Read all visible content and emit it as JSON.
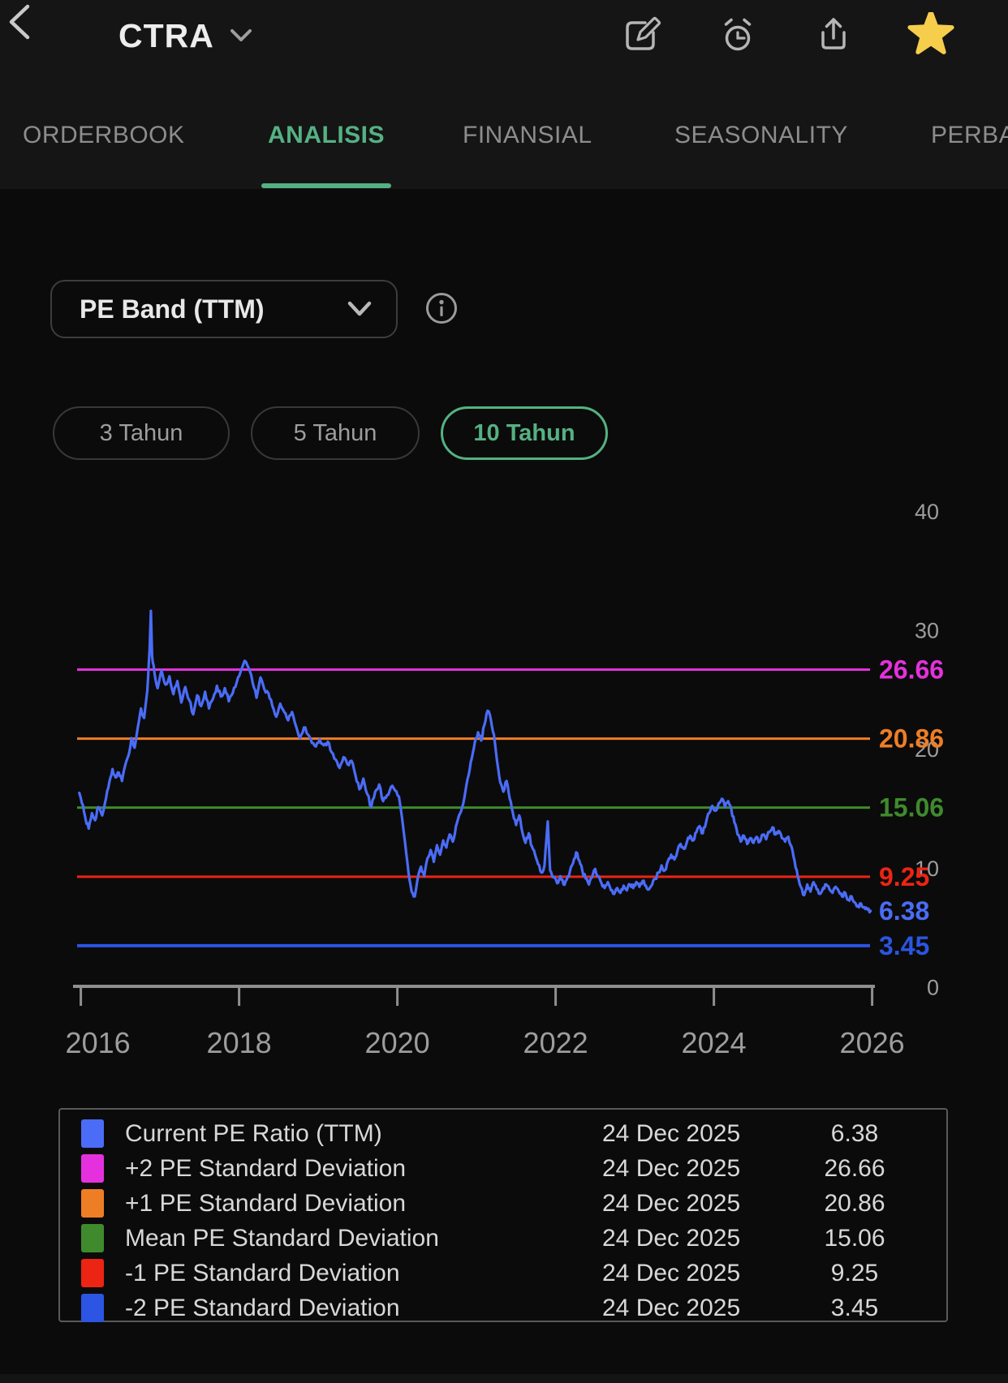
{
  "colors": {
    "accent": "#55b183",
    "star": "#f6ce4b",
    "series_blue": "#4a6cf7",
    "axis_gray": "#9d9d9d"
  },
  "header": {
    "title": "CTRA",
    "actions": [
      {
        "icon": "edit-icon"
      },
      {
        "icon": "alarm-icon"
      },
      {
        "icon": "share-icon"
      },
      {
        "icon": "star-icon",
        "active": true
      }
    ],
    "tabs": [
      {
        "label": "ORDERBOOK",
        "active": false
      },
      {
        "label": "ANALISIS",
        "active": true
      },
      {
        "label": "FINANSIAL",
        "active": false
      },
      {
        "label": "SEASONALITY",
        "active": false
      },
      {
        "label": "PERBA",
        "active": false
      }
    ]
  },
  "selector": {
    "label": "PE Band (TTM)"
  },
  "ranges": [
    {
      "label": "3 Tahun",
      "active": false
    },
    {
      "label": "5 Tahun",
      "active": false
    },
    {
      "label": "10 Tahun",
      "active": true
    }
  ],
  "chart_data": {
    "type": "line",
    "title": "PE Band (TTM) - 10 Tahun",
    "x": {
      "ticks": [
        2016,
        2018,
        2020,
        2022,
        2024,
        2026
      ],
      "range": [
        2015.95,
        2026
      ]
    },
    "y": {
      "ticks": [
        40,
        30,
        20,
        10,
        0
      ],
      "range": [
        0,
        40
      ],
      "grid": false
    },
    "bands": [
      {
        "name": "+2 PE Standard Deviation",
        "value": 26.66,
        "label": "26.66",
        "color": "#e431dd"
      },
      {
        "name": "+1 PE Standard Deviation",
        "value": 20.86,
        "label": "20.86",
        "color": "#ee7e25"
      },
      {
        "name": "Mean PE Standard Deviation",
        "value": 15.06,
        "label": "15.06",
        "color": "#3f8a2d"
      },
      {
        "name": "-1 PE Standard Deviation",
        "value": 9.25,
        "label": "9.25",
        "color": "#ec2413"
      },
      {
        "name": "-2 PE Standard Deviation",
        "value": 3.45,
        "label": "3.45",
        "color": "#2b55e2"
      }
    ],
    "series": [
      {
        "name": "Current PE Ratio (TTM)",
        "color": "#4a6cf7",
        "current_value": 6.38,
        "current_label": "6.38",
        "points": [
          [
            2015.98,
            16.3
          ],
          [
            2016.03,
            15.2
          ],
          [
            2016.06,
            14.1
          ],
          [
            2016.1,
            13.3
          ],
          [
            2016.14,
            14.6
          ],
          [
            2016.18,
            14
          ],
          [
            2016.22,
            15.1
          ],
          [
            2016.27,
            14.4
          ],
          [
            2016.32,
            15.9
          ],
          [
            2016.36,
            17.2
          ],
          [
            2016.4,
            18.3
          ],
          [
            2016.44,
            17.6
          ],
          [
            2016.48,
            18
          ],
          [
            2016.52,
            17.3
          ],
          [
            2016.56,
            18.6
          ],
          [
            2016.6,
            19.4
          ],
          [
            2016.64,
            20.9
          ],
          [
            2016.68,
            20.1
          ],
          [
            2016.72,
            21.8
          ],
          [
            2016.76,
            23.4
          ],
          [
            2016.8,
            22.6
          ],
          [
            2016.84,
            24.9
          ],
          [
            2016.87,
            28.4
          ],
          [
            2016.885,
            31.6
          ],
          [
            2016.9,
            27.8
          ],
          [
            2016.93,
            26.4
          ],
          [
            2016.97,
            25.1
          ],
          [
            2017.02,
            26.6
          ],
          [
            2017.07,
            25.4
          ],
          [
            2017.12,
            26.1
          ],
          [
            2017.17,
            24.6
          ],
          [
            2017.22,
            25.7
          ],
          [
            2017.27,
            23.9
          ],
          [
            2017.32,
            25.2
          ],
          [
            2017.37,
            24.1
          ],
          [
            2017.42,
            22.9
          ],
          [
            2017.47,
            24.5
          ],
          [
            2017.52,
            23.6
          ],
          [
            2017.57,
            24.8
          ],
          [
            2017.62,
            23.4
          ],
          [
            2017.67,
            24.2
          ],
          [
            2017.72,
            25.3
          ],
          [
            2017.77,
            24.4
          ],
          [
            2017.82,
            25.1
          ],
          [
            2017.87,
            24
          ],
          [
            2017.92,
            24.7
          ],
          [
            2017.97,
            25.6
          ],
          [
            2018.02,
            26.5
          ],
          [
            2018.07,
            27.4
          ],
          [
            2018.12,
            26.8
          ],
          [
            2018.17,
            25.6
          ],
          [
            2018.22,
            24.3
          ],
          [
            2018.27,
            26
          ],
          [
            2018.32,
            25
          ],
          [
            2018.37,
            24.7
          ],
          [
            2018.42,
            23.6
          ],
          [
            2018.47,
            22.7
          ],
          [
            2018.52,
            23.8
          ],
          [
            2018.57,
            23.1
          ],
          [
            2018.62,
            22.4
          ],
          [
            2018.67,
            23.1
          ],
          [
            2018.72,
            21.9
          ],
          [
            2018.77,
            20.9
          ],
          [
            2018.82,
            21.8
          ],
          [
            2018.87,
            21.2
          ],
          [
            2018.92,
            20.5
          ],
          [
            2018.97,
            20.2
          ],
          [
            2019.02,
            20.8
          ],
          [
            2019.07,
            20.3
          ],
          [
            2019.12,
            20.6
          ],
          [
            2019.17,
            19.7
          ],
          [
            2019.22,
            19.1
          ],
          [
            2019.27,
            18.4
          ],
          [
            2019.32,
            19.3
          ],
          [
            2019.37,
            18.7
          ],
          [
            2019.42,
            19
          ],
          [
            2019.47,
            17.8
          ],
          [
            2019.52,
            16.6
          ],
          [
            2019.57,
            17.5
          ],
          [
            2019.62,
            16.2
          ],
          [
            2019.67,
            15.1
          ],
          [
            2019.72,
            16.4
          ],
          [
            2019.77,
            17
          ],
          [
            2019.82,
            15.6
          ],
          [
            2019.87,
            16.1
          ],
          [
            2019.92,
            16.8
          ],
          [
            2019.97,
            16.5
          ],
          [
            2020.02,
            16
          ],
          [
            2020.06,
            14.2
          ],
          [
            2020.1,
            12
          ],
          [
            2020.14,
            9.6
          ],
          [
            2020.18,
            8
          ],
          [
            2020.22,
            7.6
          ],
          [
            2020.26,
            9.2
          ],
          [
            2020.3,
            10.1
          ],
          [
            2020.34,
            9.3
          ],
          [
            2020.38,
            10.8
          ],
          [
            2020.42,
            11.5
          ],
          [
            2020.46,
            10.5
          ],
          [
            2020.5,
            11.9
          ],
          [
            2020.54,
            11.1
          ],
          [
            2020.58,
            12.3
          ],
          [
            2020.62,
            11.7
          ],
          [
            2020.66,
            12.8
          ],
          [
            2020.7,
            12.2
          ],
          [
            2020.74,
            13.5
          ],
          [
            2020.78,
            14.4
          ],
          [
            2020.82,
            15.1
          ],
          [
            2020.86,
            16.4
          ],
          [
            2020.9,
            17.8
          ],
          [
            2020.94,
            19.2
          ],
          [
            2020.98,
            20.6
          ],
          [
            2021.02,
            21.4
          ],
          [
            2021.06,
            20.7
          ],
          [
            2021.1,
            22
          ],
          [
            2021.14,
            23.2
          ],
          [
            2021.18,
            22.5
          ],
          [
            2021.22,
            21.2
          ],
          [
            2021.26,
            19
          ],
          [
            2021.3,
            17.2
          ],
          [
            2021.34,
            16.4
          ],
          [
            2021.38,
            17.3
          ],
          [
            2021.42,
            15.8
          ],
          [
            2021.46,
            14.6
          ],
          [
            2021.5,
            13.6
          ],
          [
            2021.54,
            14.4
          ],
          [
            2021.58,
            13
          ],
          [
            2021.62,
            12.1
          ],
          [
            2021.66,
            12.9
          ],
          [
            2021.7,
            11.8
          ],
          [
            2021.74,
            11.1
          ],
          [
            2021.78,
            10.3
          ],
          [
            2021.82,
            9.6
          ],
          [
            2021.86,
            10.2
          ],
          [
            2021.9,
            13.9
          ],
          [
            2021.93,
            9.8
          ],
          [
            2021.97,
            9.2
          ],
          [
            2022.02,
            8.7
          ],
          [
            2022.06,
            9.3
          ],
          [
            2022.1,
            8.6
          ],
          [
            2022.14,
            9
          ],
          [
            2022.18,
            9.7
          ],
          [
            2022.22,
            10.4
          ],
          [
            2022.26,
            11.3
          ],
          [
            2022.3,
            10.6
          ],
          [
            2022.34,
            9.7
          ],
          [
            2022.38,
            9.1
          ],
          [
            2022.42,
            8.6
          ],
          [
            2022.46,
            9.2
          ],
          [
            2022.5,
            9.9
          ],
          [
            2022.54,
            9.3
          ],
          [
            2022.58,
            8.7
          ],
          [
            2022.62,
            8.3
          ],
          [
            2022.66,
            8.8
          ],
          [
            2022.7,
            8.1
          ],
          [
            2022.74,
            7.8
          ],
          [
            2022.78,
            8.3
          ],
          [
            2022.82,
            7.9
          ],
          [
            2022.86,
            8.5
          ],
          [
            2022.9,
            8.1
          ],
          [
            2022.94,
            8.6
          ],
          [
            2022.98,
            8.3
          ],
          [
            2023.02,
            8.8
          ],
          [
            2023.06,
            8.4
          ],
          [
            2023.1,
            8.9
          ],
          [
            2023.14,
            8.5
          ],
          [
            2023.18,
            8.2
          ],
          [
            2023.22,
            8.6
          ],
          [
            2023.26,
            9.1
          ],
          [
            2023.3,
            9.6
          ],
          [
            2023.34,
            10.2
          ],
          [
            2023.38,
            9.8
          ],
          [
            2023.42,
            10.6
          ],
          [
            2023.46,
            11.1
          ],
          [
            2023.5,
            10.7
          ],
          [
            2023.54,
            11.4
          ],
          [
            2023.58,
            12
          ],
          [
            2023.62,
            11.6
          ],
          [
            2023.66,
            12.2
          ],
          [
            2023.7,
            12.7
          ],
          [
            2023.74,
            12.3
          ],
          [
            2023.78,
            13
          ],
          [
            2023.82,
            13.5
          ],
          [
            2023.86,
            12.9
          ],
          [
            2023.9,
            13.8
          ],
          [
            2023.94,
            14.6
          ],
          [
            2023.98,
            15.2
          ],
          [
            2024.02,
            14.8
          ],
          [
            2024.06,
            15.4
          ],
          [
            2024.1,
            15.8
          ],
          [
            2024.14,
            15.1
          ],
          [
            2024.18,
            15.6
          ],
          [
            2024.22,
            14.9
          ],
          [
            2024.26,
            13.8
          ],
          [
            2024.3,
            12.8
          ],
          [
            2024.34,
            12.2
          ],
          [
            2024.38,
            12.7
          ],
          [
            2024.42,
            12
          ],
          [
            2024.46,
            12.5
          ],
          [
            2024.5,
            12.1
          ],
          [
            2024.54,
            12.6
          ],
          [
            2024.58,
            12.2
          ],
          [
            2024.62,
            12.8
          ],
          [
            2024.66,
            12.4
          ],
          [
            2024.7,
            13
          ],
          [
            2024.74,
            13.4
          ],
          [
            2024.78,
            12.8
          ],
          [
            2024.82,
            13.1
          ],
          [
            2024.86,
            12.5
          ],
          [
            2024.9,
            12.2
          ],
          [
            2024.94,
            12.6
          ],
          [
            2024.98,
            11.8
          ],
          [
            2025.02,
            10.6
          ],
          [
            2025.06,
            9.3
          ],
          [
            2025.1,
            8.4
          ],
          [
            2025.14,
            7.7
          ],
          [
            2025.18,
            8.6
          ],
          [
            2025.22,
            8
          ],
          [
            2025.26,
            8.8
          ],
          [
            2025.3,
            8.2
          ],
          [
            2025.34,
            7.8
          ],
          [
            2025.38,
            8.3
          ],
          [
            2025.42,
            8.6
          ],
          [
            2025.46,
            8.2
          ],
          [
            2025.5,
            7.9
          ],
          [
            2025.54,
            8.4
          ],
          [
            2025.58,
            8
          ],
          [
            2025.62,
            7.6
          ],
          [
            2025.66,
            7.9
          ],
          [
            2025.7,
            7.3
          ],
          [
            2025.74,
            7.6
          ],
          [
            2025.78,
            7.1
          ],
          [
            2025.82,
            6.8
          ],
          [
            2025.86,
            7
          ],
          [
            2025.9,
            6.7
          ],
          [
            2025.94,
            6.5
          ],
          [
            2025.98,
            6.38
          ]
        ]
      }
    ]
  },
  "legend": {
    "rows": [
      {
        "label": "Current PE Ratio (TTM)",
        "date": "24 Dec 2025",
        "value": "6.38",
        "color": "#4a6cf7"
      },
      {
        "label": "+2 PE Standard Deviation",
        "date": "24 Dec 2025",
        "value": "26.66",
        "color": "#e431dd"
      },
      {
        "label": "+1 PE Standard Deviation",
        "date": "24 Dec 2025",
        "value": "20.86",
        "color": "#ee7e25"
      },
      {
        "label": "Mean PE Standard Deviation",
        "date": "24 Dec 2025",
        "value": "15.06",
        "color": "#3f8a2d"
      },
      {
        "label": "-1 PE Standard Deviation",
        "date": "24 Dec 2025",
        "value": "9.25",
        "color": "#ec2413"
      },
      {
        "label": "-2 PE Standard Deviation",
        "date": "24 Dec 2025",
        "value": "3.45",
        "color": "#2b55e2"
      }
    ]
  }
}
